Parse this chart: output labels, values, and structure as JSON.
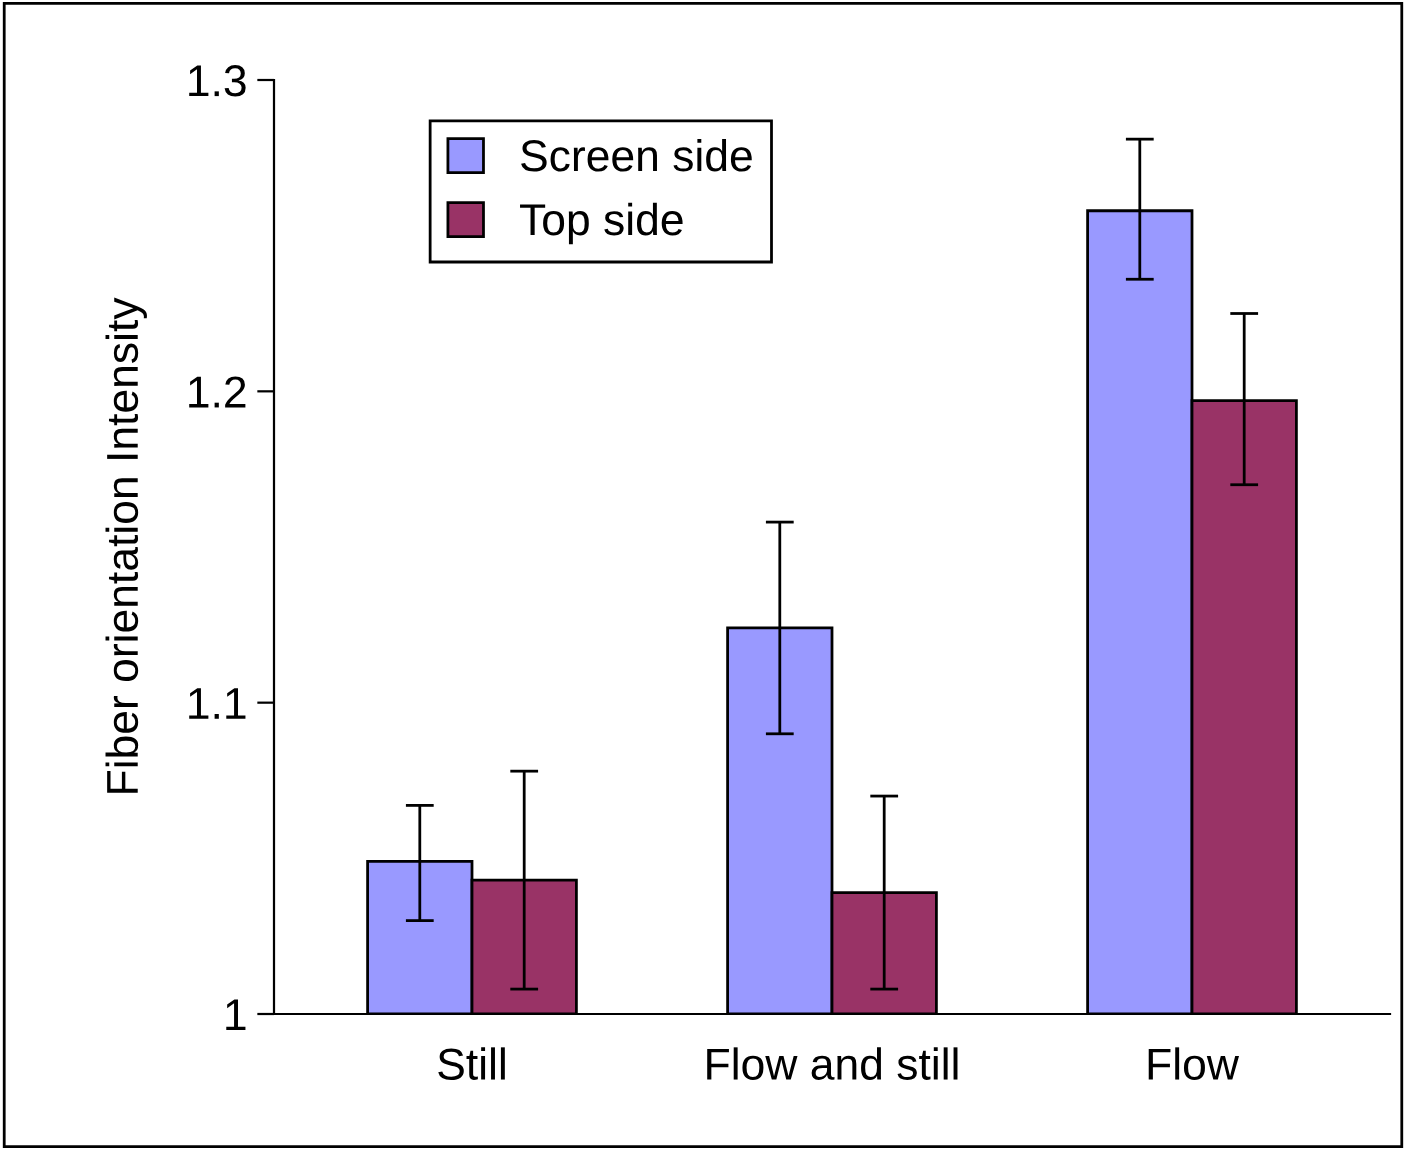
{
  "chart_data": {
    "type": "bar",
    "ylabel": "Fiber orientation Intensity",
    "categories": [
      "Still",
      "Flow and still",
      "Flow"
    ],
    "series": [
      {
        "name": "Screen side",
        "color": "#9999ff",
        "values": [
          1.049,
          1.124,
          1.258
        ],
        "errors": [
          [
            1.03,
            1.067
          ],
          [
            1.09,
            1.158
          ],
          [
            1.236,
            1.281
          ]
        ]
      },
      {
        "name": "Top side",
        "color": "#993366",
        "values": [
          1.043,
          1.039,
          1.197
        ],
        "errors": [
          [
            1.008,
            1.078
          ],
          [
            1.008,
            1.07
          ],
          [
            1.17,
            1.225
          ]
        ]
      }
    ],
    "ylim": [
      1,
      1.3
    ],
    "yticks": [
      {
        "value": 1,
        "label": "1"
      },
      1.1,
      1.2,
      1.3
    ],
    "grid": false,
    "legend": "top left"
  }
}
